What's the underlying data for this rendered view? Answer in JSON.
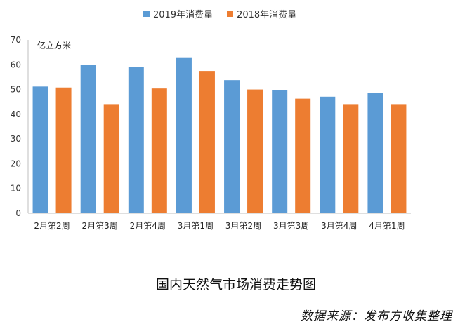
{
  "chart_data": {
    "type": "bar",
    "unit_label": "亿立方米",
    "categories": [
      "2月第2周",
      "2月第3周",
      "2月第4周",
      "3月第1周",
      "3月第2周",
      "3月第3周",
      "3月第4周",
      "4月第1周"
    ],
    "series": [
      {
        "name": "2019年消费量",
        "color": "#5B9BD5",
        "values": [
          51.2,
          59.8,
          59.0,
          63.0,
          53.8,
          49.6,
          47.1,
          48.6
        ]
      },
      {
        "name": "2018年消费量",
        "color": "#ED7D31",
        "values": [
          50.8,
          44.1,
          50.4,
          57.5,
          50.0,
          46.3,
          44.1,
          44.1
        ]
      }
    ],
    "ylim": [
      0,
      70
    ],
    "yticks": [
      0,
      10,
      20,
      30,
      40,
      50,
      60,
      70
    ],
    "grid": false,
    "legend_position": "top"
  },
  "caption": "国内天然气市场消费走势图",
  "source": "数据来源：发布方收集整理"
}
